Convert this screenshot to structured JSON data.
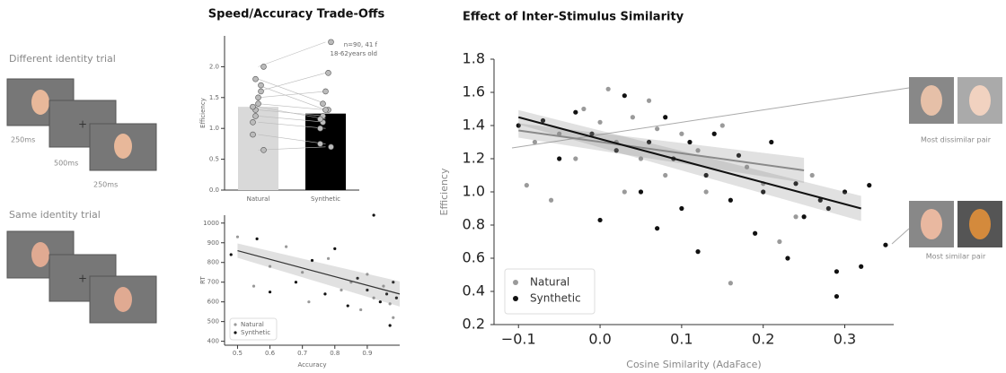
{
  "schematic": {
    "different_label": "Different identity trial",
    "same_label": "Same identity trial",
    "timings": [
      "250ms",
      "500ms",
      "250ms"
    ]
  },
  "pairs": {
    "dissimilar_label": "Most dissimilar pair",
    "similar_label": "Most similar pair"
  },
  "chart_data": [
    {
      "type": "bar",
      "title": "Speed/Accuracy Trade-Offs",
      "ylabel": "Efficiency",
      "annotation": [
        "n=90, 41 f",
        "18-62years old"
      ],
      "categories": [
        "Natural",
        "Synthetic"
      ],
      "values": [
        1.35,
        1.24
      ],
      "colors": [
        "#d9d9d9",
        "#000000"
      ],
      "paired": [
        [
          1.1,
          1.3,
          1.5,
          1.7,
          2.0,
          0.9,
          1.2,
          1.4,
          1.6,
          0.65,
          1.35,
          1.8
        ],
        [
          1.0,
          1.2,
          1.6,
          1.3,
          2.4,
          0.75,
          1.1,
          1.3,
          1.9,
          0.7,
          1.15,
          1.4
        ]
      ],
      "ylim": [
        0,
        2.5
      ],
      "yticks": [
        {
          "value": 0,
          "label": "0.0"
        },
        {
          "value": 0.5,
          "label": "0.5"
        },
        {
          "value": 1,
          "label": "1.0"
        },
        {
          "value": 1.5,
          "label": "1.5"
        },
        {
          "value": 2,
          "label": "2.0"
        }
      ]
    },
    {
      "type": "scatter",
      "xlabel": "Accuracy",
      "ylabel": "RT",
      "legend": "lower left",
      "series": [
        {
          "name": "Natural",
          "color": "#999999",
          "x": [
            0.5,
            0.55,
            0.6,
            0.65,
            0.7,
            0.72,
            0.78,
            0.82,
            0.85,
            0.88,
            0.9,
            0.92,
            0.95,
            0.97,
            0.98
          ],
          "values": [
            930,
            680,
            780,
            880,
            750,
            600,
            820,
            660,
            700,
            560,
            740,
            620,
            680,
            590,
            520
          ]
        },
        {
          "name": "Synthetic",
          "color": "#111111",
          "x": [
            0.48,
            0.56,
            0.6,
            0.68,
            0.73,
            0.77,
            0.8,
            0.84,
            0.87,
            0.9,
            0.92,
            0.94,
            0.96,
            0.97,
            0.98,
            0.99
          ],
          "values": [
            840,
            920,
            650,
            700,
            810,
            640,
            870,
            580,
            720,
            660,
            1040,
            600,
            640,
            480,
            700,
            620
          ]
        }
      ],
      "fits": [
        {
          "color": "#333333",
          "x": [
            0.5,
            1.0
          ],
          "y": [
            860,
            640
          ]
        }
      ],
      "xlim": [
        0.46,
        1.0
      ],
      "xticks": [
        0.5,
        0.6,
        0.7,
        0.8,
        0.9
      ],
      "ylim": [
        380,
        1040
      ],
      "yticks": [
        400,
        500,
        600,
        700,
        800,
        900,
        1000
      ]
    },
    {
      "type": "scatter",
      "title": "Effect of Inter-Stimulus Similarity",
      "xlabel": "Cosine Similarity (AdaFace)",
      "ylabel": "Efficiency",
      "legend": "lower left",
      "series": [
        {
          "name": "Natural",
          "color": "#9a9a9a",
          "x": [
            -0.09,
            -0.08,
            -0.06,
            -0.05,
            -0.02,
            0.0,
            0.01,
            0.02,
            0.04,
            0.05,
            0.06,
            0.08,
            0.1,
            0.12,
            0.13,
            0.15,
            0.16,
            0.18,
            0.2,
            0.22,
            0.24,
            0.26,
            -0.03,
            0.03,
            0.07
          ],
          "values": [
            1.04,
            1.3,
            0.95,
            1.35,
            1.5,
            1.42,
            1.62,
            1.3,
            1.45,
            1.2,
            1.55,
            1.1,
            1.35,
            1.25,
            1.0,
            1.4,
            0.45,
            1.15,
            1.05,
            0.7,
            0.85,
            1.1,
            1.2,
            1.0,
            1.38
          ]
        },
        {
          "name": "Synthetic",
          "color": "#111111",
          "x": [
            -0.1,
            -0.07,
            -0.05,
            -0.03,
            -0.01,
            0.0,
            0.02,
            0.03,
            0.05,
            0.06,
            0.07,
            0.08,
            0.09,
            0.1,
            0.11,
            0.12,
            0.13,
            0.14,
            0.16,
            0.17,
            0.19,
            0.2,
            0.21,
            0.23,
            0.24,
            0.25,
            0.27,
            0.29,
            0.29,
            0.3,
            0.32,
            0.35,
            0.28,
            0.33
          ],
          "values": [
            1.4,
            1.43,
            1.2,
            1.48,
            1.35,
            0.83,
            1.25,
            1.58,
            1.0,
            1.3,
            0.78,
            1.45,
            1.2,
            0.9,
            1.3,
            0.64,
            1.1,
            1.35,
            0.95,
            1.22,
            0.75,
            1.0,
            1.3,
            0.6,
            1.05,
            0.85,
            0.95,
            0.37,
            0.52,
            1.0,
            0.55,
            0.68,
            0.9,
            1.04
          ]
        }
      ],
      "fits": [
        {
          "color": "#8a8a8a",
          "x": [
            -0.1,
            0.25
          ],
          "y": [
            1.37,
            1.13
          ]
        },
        {
          "color": "#111111",
          "x": [
            -0.1,
            0.32
          ],
          "y": [
            1.45,
            0.9
          ]
        }
      ],
      "xlim": [
        -0.13,
        0.36
      ],
      "xticks": [
        {
          "value": -0.1,
          "label": "−0.1"
        },
        {
          "value": 0,
          "label": "0.0"
        },
        0.1,
        0.2,
        0.3
      ],
      "ylim": [
        0.2,
        1.8
      ],
      "yticks": [
        0.2,
        0.4,
        0.6,
        0.8,
        {
          "value": 1,
          "label": "1.0"
        },
        1.2,
        1.4,
        1.6,
        1.8
      ]
    }
  ]
}
